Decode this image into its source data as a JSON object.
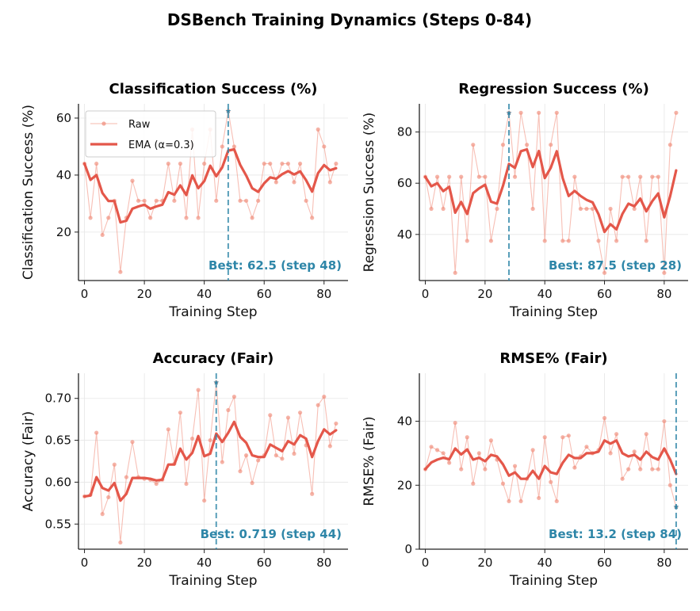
{
  "title": "DSBench Training Dynamics (Steps 0-84)",
  "colors": {
    "raw": "#f08a78",
    "ema": "#e4574a",
    "best": "#2e86a8",
    "grid": "#e6e6e6",
    "axis": "#222222"
  },
  "legend": {
    "raw": "Raw",
    "ema": "EMA (α=0.3)"
  },
  "chart_data": [
    {
      "type": "line",
      "title": "Classification Success (%)",
      "xlabel": "Training Step",
      "ylabel": "Classification Success (%)",
      "xlim": [
        -2,
        88
      ],
      "ylim": [
        3,
        65
      ],
      "xticks": [
        0,
        20,
        40,
        60,
        80
      ],
      "yticks": [
        20,
        40,
        60
      ],
      "ytick_labels": [
        "20",
        "40",
        "60"
      ],
      "best": {
        "x": 48,
        "y": 62.5,
        "label": "Best: 62.5 (step 48)"
      },
      "series": [
        {
          "name": "Raw",
          "x": [
            0,
            2,
            4,
            6,
            8,
            10,
            12,
            14,
            16,
            18,
            20,
            22,
            24,
            26,
            28,
            30,
            32,
            34,
            36,
            38,
            40,
            42,
            44,
            46,
            48,
            50,
            52,
            54,
            56,
            58,
            60,
            62,
            64,
            66,
            68,
            70,
            72,
            74,
            76,
            78,
            80,
            82,
            84
          ],
          "values": [
            44,
            25,
            44,
            19,
            25,
            31,
            6,
            25,
            38,
            31,
            31,
            25,
            31,
            31,
            44,
            31,
            44,
            25,
            56,
            25,
            44,
            56,
            31,
            50,
            62.5,
            50,
            31,
            31,
            25,
            31,
            44,
            44,
            37.5,
            44,
            44,
            37.5,
            44,
            31,
            25,
            56,
            50,
            37.5,
            44
          ]
        },
        {
          "name": "EMA (α=0.3)",
          "x": [
            0,
            2,
            4,
            6,
            8,
            10,
            12,
            14,
            16,
            18,
            20,
            22,
            24,
            26,
            28,
            30,
            32,
            34,
            36,
            38,
            40,
            42,
            44,
            46,
            48,
            50,
            52,
            54,
            56,
            58,
            60,
            62,
            64,
            66,
            68,
            70,
            72,
            74,
            76,
            78,
            80,
            82,
            84
          ],
          "values": [
            44,
            38.3,
            40,
            33.7,
            30.9,
            30.9,
            23.4,
            24,
            28.2,
            29,
            29.6,
            28.2,
            29,
            29.6,
            34,
            33.1,
            36.4,
            33,
            39.9,
            35.4,
            37.9,
            43.3,
            39.6,
            42.7,
            48.6,
            49,
            43.6,
            39.8,
            35.4,
            34.1,
            37.1,
            39.2,
            38.7,
            40.3,
            41.4,
            40.2,
            41.3,
            38.2,
            34.2,
            40.7,
            43.5,
            41.7,
            42.4
          ]
        }
      ]
    },
    {
      "type": "line",
      "title": "Regression Success (%)",
      "xlabel": "Training Step",
      "ylabel": "Regression Success (%)",
      "xlim": [
        -2,
        88
      ],
      "ylim": [
        22,
        91
      ],
      "xticks": [
        0,
        20,
        40,
        60,
        80
      ],
      "yticks": [
        40,
        60,
        80
      ],
      "ytick_labels": [
        "40",
        "60",
        "80"
      ],
      "best": {
        "x": 28,
        "y": 87.5,
        "label": "Best: 87.5 (step 28)"
      },
      "series": [
        {
          "name": "Raw",
          "x": [
            0,
            2,
            4,
            6,
            8,
            10,
            12,
            14,
            16,
            18,
            20,
            22,
            24,
            26,
            28,
            30,
            32,
            34,
            36,
            38,
            40,
            42,
            44,
            46,
            48,
            50,
            52,
            54,
            56,
            58,
            60,
            62,
            64,
            66,
            68,
            70,
            72,
            74,
            76,
            78,
            80,
            82,
            84
          ],
          "values": [
            62.5,
            50,
            62.5,
            50,
            62.5,
            25,
            62.5,
            37.5,
            75,
            62.5,
            62.5,
            37.5,
            50,
            75,
            87.5,
            62.5,
            87.5,
            75,
            50,
            87.5,
            37.5,
            75,
            87.5,
            37.5,
            37.5,
            62.5,
            50,
            50,
            50,
            37.5,
            25,
            50,
            37.5,
            62.5,
            62.5,
            50,
            62.5,
            37.5,
            62.5,
            62.5,
            25,
            75,
            87.5
          ]
        },
        {
          "name": "EMA (α=0.3)",
          "x": [
            0,
            2,
            4,
            6,
            8,
            10,
            12,
            14,
            16,
            18,
            20,
            22,
            24,
            26,
            28,
            30,
            32,
            34,
            36,
            38,
            40,
            42,
            44,
            46,
            48,
            50,
            52,
            54,
            56,
            58,
            60,
            62,
            64,
            66,
            68,
            70,
            72,
            74,
            76,
            78,
            80,
            82,
            84
          ],
          "values": [
            62.5,
            58.8,
            60,
            56.9,
            58.6,
            48.5,
            52.7,
            48,
            56.1,
            58,
            59.4,
            52.8,
            52,
            59,
            67.5,
            66,
            72.5,
            73.2,
            66.3,
            72.6,
            62,
            66,
            72.5,
            62,
            55,
            57,
            55,
            53.5,
            52.5,
            47.9,
            41,
            44,
            42,
            48,
            52,
            51,
            54,
            49,
            53,
            56,
            46.7,
            55,
            65
          ]
        }
      ]
    },
    {
      "type": "line",
      "title": "Accuracy (Fair)",
      "xlabel": "Training Step",
      "ylabel": "Accuracy (Fair)",
      "xlim": [
        -2,
        88
      ],
      "ylim": [
        0.52,
        0.73
      ],
      "xticks": [
        0,
        20,
        40,
        60,
        80
      ],
      "yticks": [
        0.55,
        0.6,
        0.65,
        0.7
      ],
      "ytick_labels": [
        "0.55",
        "0.60",
        "0.65",
        "0.70"
      ],
      "best": {
        "x": 44,
        "y": 0.719,
        "label": "Best: 0.719 (step 44)"
      },
      "series": [
        {
          "name": "Raw",
          "x": [
            0,
            2,
            4,
            6,
            8,
            10,
            12,
            14,
            16,
            18,
            20,
            22,
            24,
            26,
            28,
            30,
            32,
            34,
            36,
            38,
            40,
            42,
            44,
            46,
            48,
            50,
            52,
            54,
            56,
            58,
            60,
            62,
            64,
            66,
            68,
            70,
            72,
            74,
            76,
            78,
            80,
            82,
            84
          ],
          "values": [
            0.583,
            0.585,
            0.659,
            0.562,
            0.582,
            0.621,
            0.528,
            0.606,
            0.648,
            0.606,
            0.604,
            0.603,
            0.598,
            0.603,
            0.663,
            0.622,
            0.683,
            0.598,
            0.652,
            0.71,
            0.578,
            0.65,
            0.719,
            0.624,
            0.686,
            0.702,
            0.613,
            0.632,
            0.599,
            0.626,
            0.632,
            0.68,
            0.632,
            0.628,
            0.677,
            0.634,
            0.683,
            0.644,
            0.586,
            0.692,
            0.702,
            0.643,
            0.67
          ]
        },
        {
          "name": "EMA (α=0.3)",
          "x": [
            0,
            2,
            4,
            6,
            8,
            10,
            12,
            14,
            16,
            18,
            20,
            22,
            24,
            26,
            28,
            30,
            32,
            34,
            36,
            38,
            40,
            42,
            44,
            46,
            48,
            50,
            52,
            54,
            56,
            58,
            60,
            62,
            64,
            66,
            68,
            70,
            72,
            74,
            76,
            78,
            80,
            82,
            84
          ],
          "values": [
            0.583,
            0.584,
            0.606,
            0.593,
            0.59,
            0.599,
            0.578,
            0.586,
            0.605,
            0.605,
            0.605,
            0.604,
            0.602,
            0.603,
            0.621,
            0.621,
            0.64,
            0.627,
            0.635,
            0.655,
            0.631,
            0.634,
            0.658,
            0.648,
            0.659,
            0.672,
            0.654,
            0.647,
            0.632,
            0.63,
            0.63,
            0.645,
            0.641,
            0.637,
            0.649,
            0.645,
            0.656,
            0.652,
            0.63,
            0.649,
            0.663,
            0.657,
            0.662
          ]
        }
      ]
    },
    {
      "type": "line",
      "title": "RMSE% (Fair)",
      "xlabel": "Training Step",
      "ylabel": "RMSE% (Fair)",
      "xlim": [
        -2,
        88
      ],
      "ylim": [
        0,
        55
      ],
      "xticks": [
        0,
        20,
        40,
        60,
        80
      ],
      "yticks": [
        0,
        20,
        40
      ],
      "ytick_labels": [
        "0",
        "20",
        "40"
      ],
      "best": {
        "x": 84,
        "y": 13.2,
        "label": "Best: 13.2 (step 84)"
      },
      "series": [
        {
          "name": "Raw",
          "x": [
            0,
            2,
            4,
            6,
            8,
            10,
            12,
            14,
            16,
            18,
            20,
            22,
            24,
            26,
            28,
            30,
            32,
            34,
            36,
            38,
            40,
            42,
            44,
            46,
            48,
            50,
            52,
            54,
            56,
            58,
            60,
            62,
            64,
            66,
            68,
            70,
            72,
            74,
            76,
            78,
            80,
            82,
            84
          ],
          "values": [
            25,
            32,
            31,
            30,
            27,
            39.5,
            25,
            35,
            20.5,
            30,
            25,
            34,
            28,
            20.5,
            15,
            26,
            15,
            22,
            31,
            16,
            35,
            21,
            15,
            35,
            35.5,
            25.5,
            29,
            32,
            30,
            31,
            41,
            30,
            36,
            22,
            25,
            30.5,
            25,
            36,
            25,
            25,
            40,
            20,
            13.2
          ]
        },
        {
          "name": "EMA (α=0.3)",
          "x": [
            0,
            2,
            4,
            6,
            8,
            10,
            12,
            14,
            16,
            18,
            20,
            22,
            24,
            26,
            28,
            30,
            32,
            34,
            36,
            38,
            40,
            42,
            44,
            46,
            48,
            50,
            52,
            54,
            56,
            58,
            60,
            62,
            64,
            66,
            68,
            70,
            72,
            74,
            76,
            78,
            80,
            82,
            84
          ],
          "values": [
            25,
            27.1,
            28,
            28.6,
            28.1,
            31.5,
            29.6,
            31.2,
            28,
            28.6,
            27.5,
            29.5,
            29,
            26.5,
            23,
            24,
            22,
            22,
            24.5,
            22,
            26,
            24,
            23.5,
            27,
            29.5,
            28.5,
            28.5,
            30,
            30,
            30.5,
            34,
            33,
            34,
            30,
            29,
            29.5,
            28,
            30.5,
            28.8,
            28,
            31.5,
            28,
            23.5
          ]
        }
      ]
    }
  ]
}
